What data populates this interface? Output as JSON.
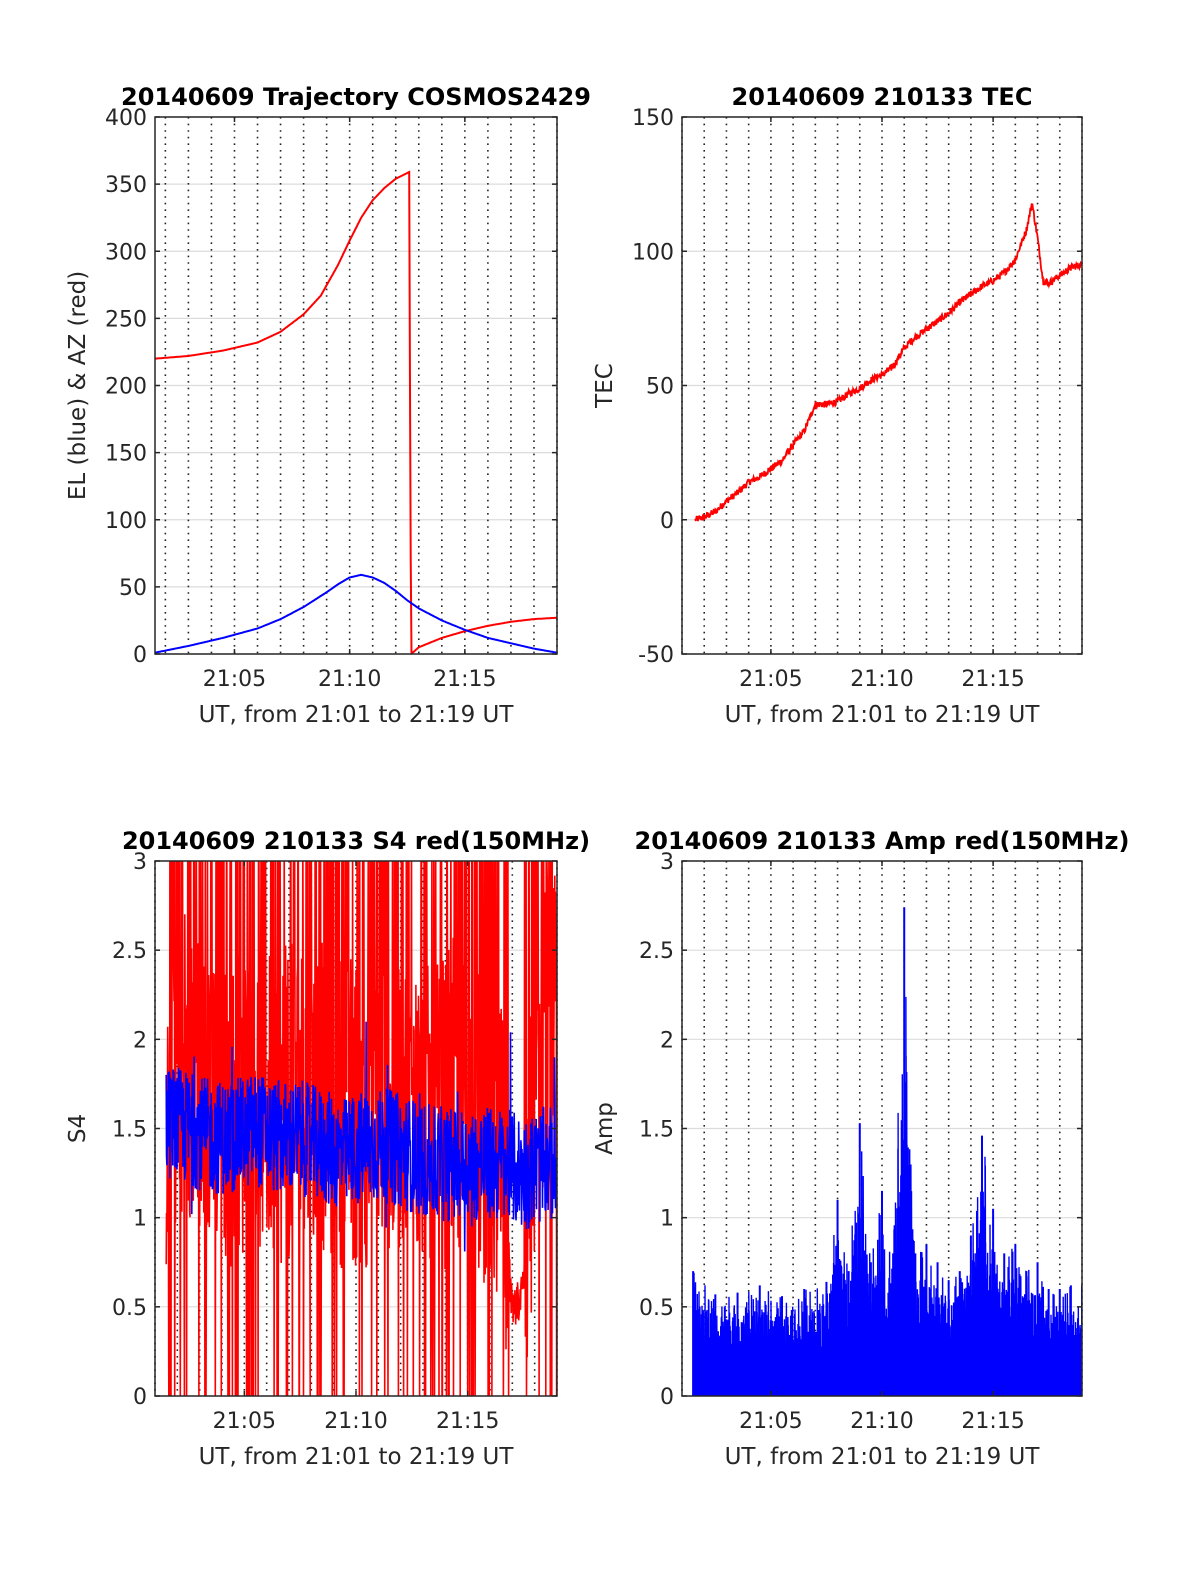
{
  "chart_data": [
    {
      "type": "line",
      "title": "20140609 Trajectory COSMOS2429",
      "xlabel": "UT, from 21:01 to 21:19 UT",
      "ylabel": "EL (blue) & AZ (red)",
      "xlim": [
        "21:01:33",
        "21:19:00"
      ],
      "ylim": [
        0,
        400
      ],
      "xticks": [
        "21:05",
        "21:10",
        "21:15"
      ],
      "yticks": [
        "0",
        "50",
        "100",
        "150",
        "200",
        "250",
        "300",
        "350",
        "400"
      ],
      "grid": "horizontal light gray, vertical dotted every minute",
      "series": [
        {
          "color": "#ff0000",
          "x": [
            "21:01:33",
            "21:03:00",
            "21:04:30",
            "21:06:00",
            "21:07:00",
            "21:08:00",
            "21:08:45",
            "21:09:30",
            "21:10:00",
            "21:10:30",
            "21:11:00",
            "21:11:30",
            "21:12:00",
            "21:12:35",
            "21:12:40",
            "21:13:00",
            "21:14:00",
            "21:15:00",
            "21:16:00",
            "21:17:00",
            "21:18:00",
            "21:19:00"
          ],
          "values": [
            220,
            222,
            226,
            232,
            240,
            253,
            267,
            290,
            308,
            325,
            338,
            347,
            354,
            359,
            0,
            5,
            12,
            17,
            21,
            24,
            26,
            27
          ]
        },
        {
          "color": "#0000ff",
          "x": [
            "21:01:33",
            "21:03:00",
            "21:04:30",
            "21:06:00",
            "21:07:00",
            "21:08:00",
            "21:09:00",
            "21:09:30",
            "21:10:00",
            "21:10:30",
            "21:11:00",
            "21:11:30",
            "21:12:00",
            "21:12:30",
            "21:13:00",
            "21:14:00",
            "21:15:00",
            "21:16:00",
            "21:17:00",
            "21:18:00",
            "21:19:00"
          ],
          "values": [
            1,
            6,
            12,
            19,
            26,
            35,
            46,
            52,
            57,
            59,
            57,
            53,
            47,
            40,
            34,
            25,
            18,
            12,
            8,
            4,
            1
          ]
        }
      ]
    },
    {
      "type": "line",
      "title": "20140609 210133 TEC",
      "xlabel": "UT, from 21:01 to 21:19 UT",
      "ylabel": "TEC",
      "xlim": [
        "21:01:00",
        "21:19:00"
      ],
      "ylim": [
        -50,
        150
      ],
      "xticks": [
        "21:05",
        "21:10",
        "21:15"
      ],
      "yticks": [
        "-50",
        "0",
        "50",
        "100",
        "150"
      ],
      "grid": "horizontal light gray, vertical dotted every minute",
      "series": [
        {
          "color": "#ff0000",
          "x": [
            "21:01:36",
            "21:02:00",
            "21:02:30",
            "21:03:00",
            "21:03:30",
            "21:04:00",
            "21:04:30",
            "21:05:00",
            "21:05:30",
            "21:06:00",
            "21:06:30",
            "21:07:00",
            "21:07:30",
            "21:08:00",
            "21:08:30",
            "21:09:00",
            "21:09:30",
            "21:10:00",
            "21:10:30",
            "21:11:00",
            "21:11:30",
            "21:12:00",
            "21:12:30",
            "21:13:00",
            "21:13:30",
            "21:14:00",
            "21:14:30",
            "21:15:00",
            "21:15:30",
            "21:16:00",
            "21:16:30",
            "21:16:45",
            "21:17:00",
            "21:17:15",
            "21:17:30",
            "21:18:00",
            "21:18:30",
            "21:19:00"
          ],
          "values": [
            0,
            1,
            3,
            7,
            10,
            14,
            16,
            19,
            22,
            28,
            33,
            43,
            43,
            44,
            47,
            49,
            52,
            54,
            57,
            64,
            68,
            71,
            74,
            77,
            81,
            84,
            87,
            89,
            92,
            97,
            108,
            118,
            105,
            89,
            88,
            91,
            94,
            95
          ]
        }
      ]
    },
    {
      "type": "line",
      "title": "20140609 210133 S4 red(150MHz)",
      "xlabel": "UT, from 21:01 to 21:19 UT",
      "ylabel": "S4",
      "xlim": [
        "21:01:00",
        "21:19:00"
      ],
      "ylim": [
        0,
        3
      ],
      "xticks": [
        "21:05",
        "21:10",
        "21:15"
      ],
      "yticks": [
        "0",
        "0.5",
        "1",
        "1.5",
        "2",
        "2.5",
        "3"
      ],
      "grid": "horizontal light gray, vertical dotted every minute",
      "series": [
        {
          "color": "#ff0000",
          "x": [
            "21:01:30",
            "21:02:30",
            "21:03:30",
            "21:04:30",
            "21:05:30",
            "21:06:30",
            "21:07:30",
            "21:08:30",
            "21:09:30",
            "21:10:30",
            "21:11:30",
            "21:12:30",
            "21:13:30",
            "21:14:30",
            "21:15:30",
            "21:16:30",
            "21:17:00",
            "21:17:30",
            "21:18:00",
            "21:18:30",
            "21:19:00"
          ],
          "values": [
            1.6,
            1.9,
            1.7,
            1.6,
            1.7,
            1.6,
            1.7,
            1.7,
            1.6,
            1.6,
            1.7,
            1.6,
            1.5,
            1.7,
            1.5,
            1.3,
            0.45,
            0.6,
            1.6,
            2.2,
            2.5
          ]
        },
        {
          "color": "#0000ff",
          "x": [
            "21:01:30",
            "21:02:30",
            "21:03:30",
            "21:04:30",
            "21:05:30",
            "21:06:30",
            "21:07:30",
            "21:08:30",
            "21:09:30",
            "21:10:30",
            "21:11:30",
            "21:12:30",
            "21:13:30",
            "21:14:30",
            "21:15:30",
            "21:16:30",
            "21:17:30",
            "21:18:30",
            "21:19:00"
          ],
          "values": [
            1.55,
            1.5,
            1.45,
            1.45,
            1.5,
            1.45,
            1.45,
            1.4,
            1.35,
            1.4,
            1.4,
            1.35,
            1.3,
            1.3,
            1.3,
            1.3,
            1.25,
            1.3,
            1.3
          ]
        }
      ]
    },
    {
      "type": "line",
      "title": "20140609 210133 Amp red(150MHz)",
      "xlabel": "UT, from 21:01 to 21:19 UT",
      "ylabel": "Amp",
      "xlim": [
        "21:01:00",
        "21:19:00"
      ],
      "ylim": [
        0,
        3
      ],
      "xticks": [
        "21:05",
        "21:10",
        "21:15"
      ],
      "yticks": [
        "0",
        "0.5",
        "1",
        "1.5",
        "2",
        "2.5",
        "3"
      ],
      "grid": "horizontal light gray, vertical dotted every minute",
      "series": [
        {
          "color": "#0000ff",
          "x": [
            "21:01:30",
            "21:02:30",
            "21:03:30",
            "21:04:30",
            "21:05:30",
            "21:06:30",
            "21:07:30",
            "21:08:00",
            "21:08:30",
            "21:09:00",
            "21:09:30",
            "21:10:00",
            "21:10:30",
            "21:11:00",
            "21:11:30",
            "21:12:00",
            "21:12:30",
            "21:13:00",
            "21:13:30",
            "21:14:00",
            "21:14:30",
            "21:15:00",
            "21:15:30",
            "21:16:00",
            "21:16:30",
            "21:17:00",
            "21:17:30",
            "21:18:00",
            "21:18:30",
            "21:19:00"
          ],
          "values": [
            0.7,
            0.57,
            0.58,
            0.62,
            0.56,
            0.6,
            0.64,
            1.1,
            0.7,
            1.53,
            0.75,
            1.15,
            0.8,
            2.74,
            0.8,
            0.85,
            0.75,
            0.65,
            0.7,
            0.9,
            1.46,
            1.05,
            0.8,
            0.85,
            0.7,
            0.75,
            0.6,
            0.6,
            0.62,
            0.62
          ]
        }
      ]
    }
  ]
}
